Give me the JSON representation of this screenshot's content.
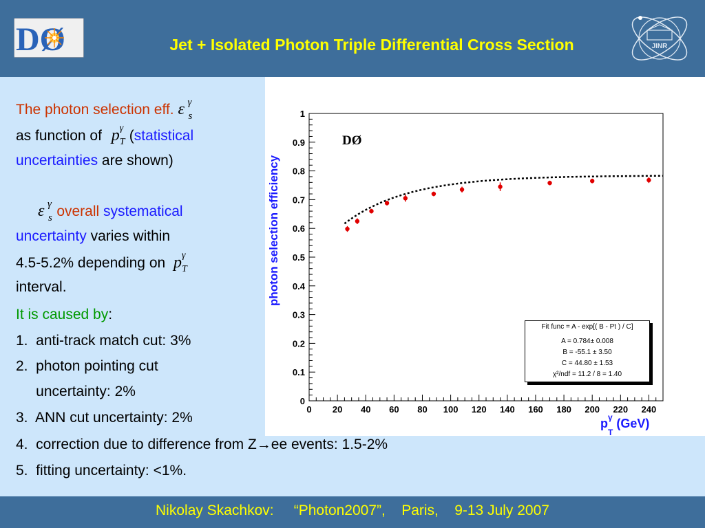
{
  "header": {
    "title": "Jet + Isolated Photon Triple Differential Cross Section",
    "d0_logo_text": "DØ",
    "jinr_logo_text": "JINR"
  },
  "left_text": {
    "l1_a": "The photon selection eff.",
    "l2_a": "as function of",
    "l2_b": "(",
    "l2_c": "statistical",
    "l3_a": "uncertainties",
    "l3_b": " are shown)",
    "l4_a": "overall",
    "l4_b": "systematical",
    "l5_a": "uncertainty",
    "l5_b": " varies within",
    "l6_a": "4.5-5.2% depending on",
    "l7_a": "interval.",
    "l8_a": "It is caused by",
    "l8_b": ":",
    "items": [
      "1.  anti-track match cut: 3%",
      "2.  photon pointing cut",
      "     uncertainty: 2%",
      "3.  ANN cut uncertainty: 2%",
      "4.  correction due to difference from Z→ee events: 1.5-2%",
      "5.  fitting uncertainty: <1%."
    ]
  },
  "math": {
    "eps": "ε",
    "eps_sup": "γ",
    "eps_sub": "s",
    "pt": "p",
    "pt_sup": "γ",
    "pt_sub": "T"
  },
  "footer": {
    "text": "Nikolay Skachkov:     “Photon2007”,    Paris,    9-13 July 2007"
  },
  "chart_data": {
    "type": "scatter",
    "experiment_label": "DØ",
    "ylabel": "photon selection efficiency",
    "xlabel_main": "p",
    "xlabel_sup": "γ",
    "xlabel_sub": "T",
    "xlabel_unit": " (GeV)",
    "xlim": [
      0,
      250
    ],
    "ylim": [
      0,
      1
    ],
    "x_ticks": [
      0,
      20,
      40,
      60,
      80,
      100,
      120,
      140,
      160,
      180,
      200,
      220,
      240
    ],
    "y_ticks": [
      0,
      0.1,
      0.2,
      0.3,
      0.4,
      0.5,
      0.6,
      0.7,
      0.8,
      0.9,
      1
    ],
    "points": {
      "x": [
        27,
        34,
        44,
        55,
        68,
        88,
        108,
        135,
        170,
        200,
        240
      ],
      "y": [
        0.598,
        0.625,
        0.66,
        0.688,
        0.705,
        0.72,
        0.735,
        0.745,
        0.758,
        0.765,
        0.768
      ],
      "err": [
        0.01,
        0.01,
        0.008,
        0.008,
        0.012,
        0.008,
        0.01,
        0.015,
        0.008,
        0.008,
        0.01
      ]
    },
    "fit": {
      "function": "A - exp[(B - Pt)/C]",
      "A": 0.784,
      "B": -55.1,
      "C": 44.8,
      "line_range": [
        25,
        250
      ]
    },
    "fit_box": {
      "line1": "Fit func = A - exp[( B - Pt ) / C]",
      "line2": "A = 0.784±  0.008",
      "line3": "B = -55.1 ± 3.50",
      "line4": "C =  44.80 ± 1.53",
      "line5": "χ²/ndf = 11.2 / 8 = 1.40"
    },
    "colors": {
      "points": "#e00000",
      "fit_line": "#000000",
      "axis_titles": "#1a1aff"
    }
  }
}
